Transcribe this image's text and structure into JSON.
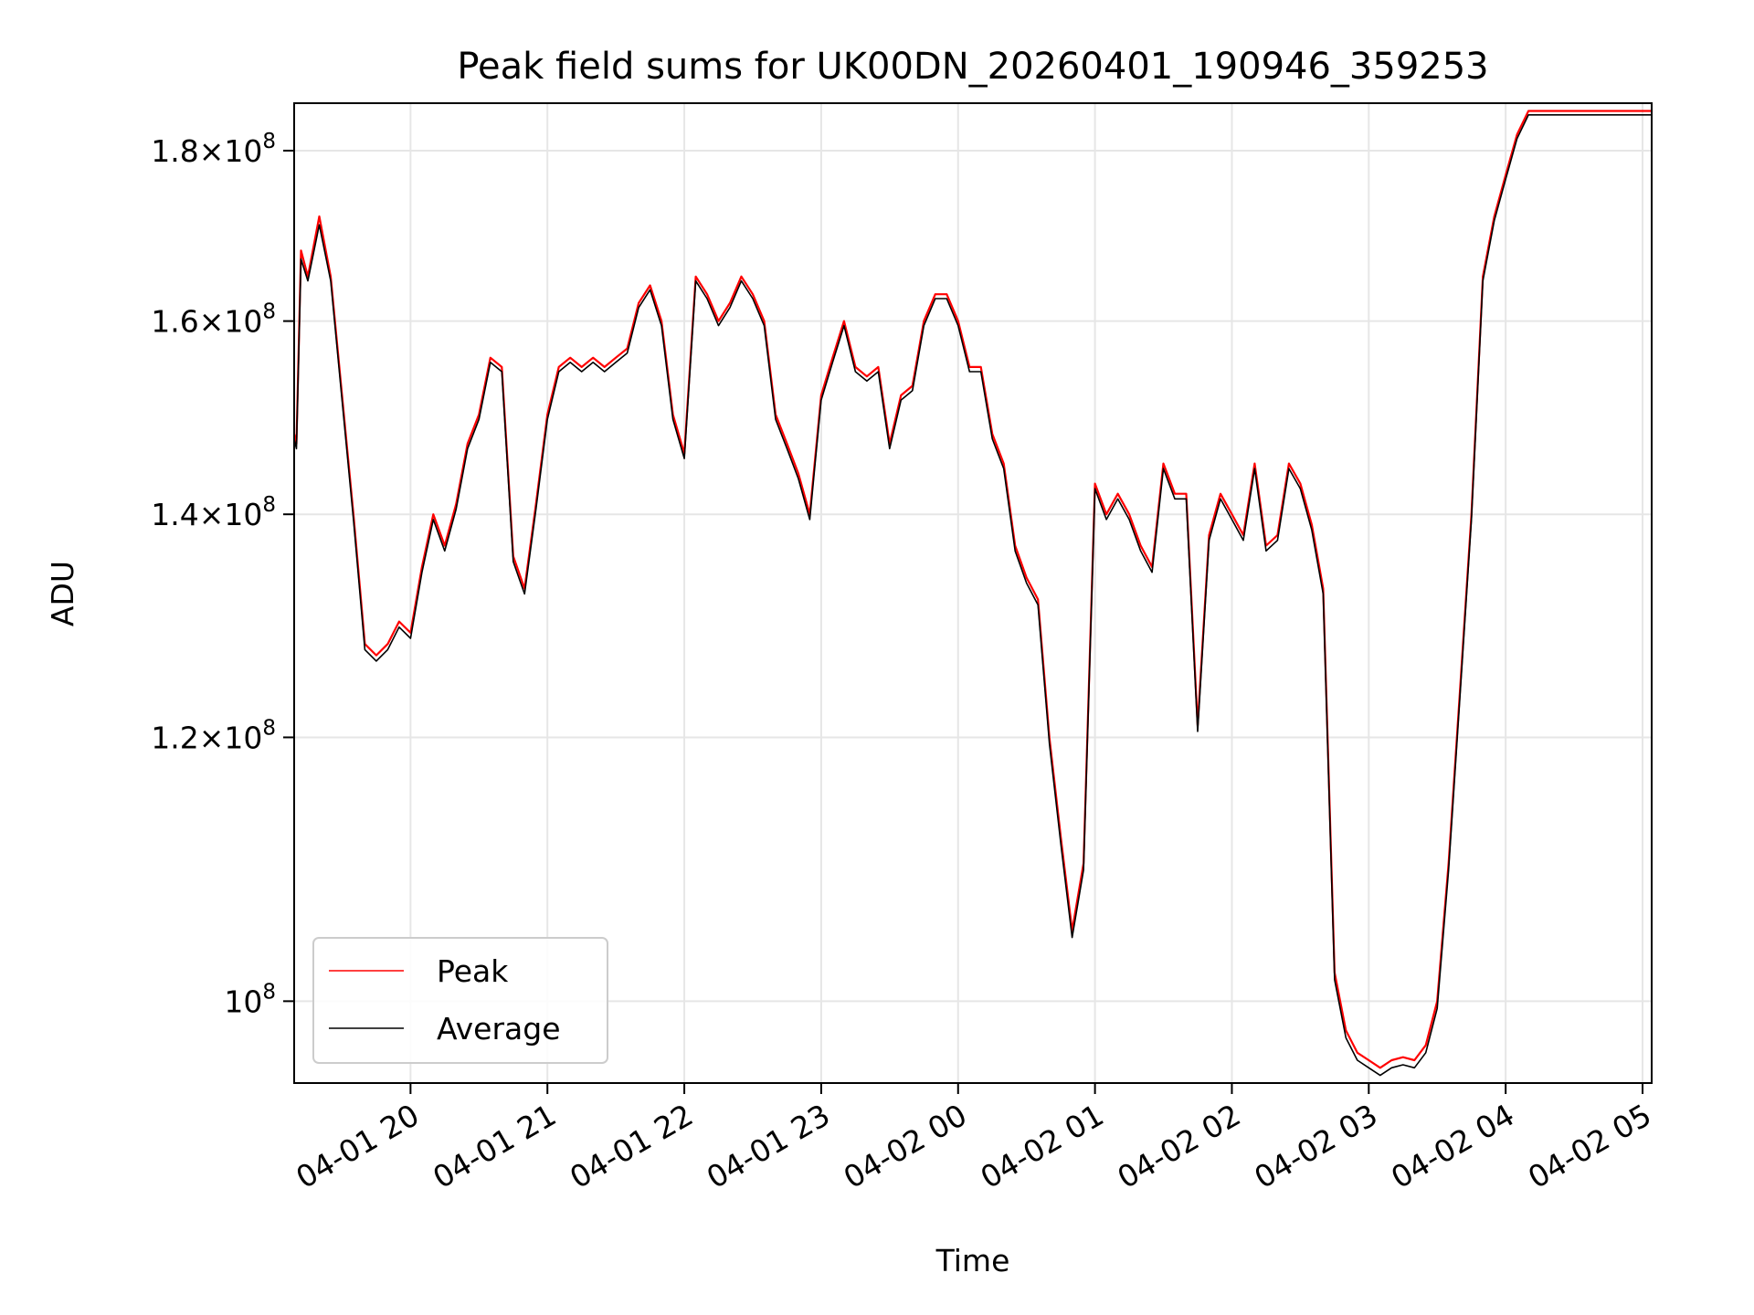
{
  "chart_data": {
    "type": "line",
    "title": "Peak field sums for UK00DN_20260401_190946_359253",
    "xlabel": "Time",
    "ylabel": "ADU",
    "yscale": "log",
    "ylim": [
      94500000,
      186000000
    ],
    "xlim": [
      "2026-04-01 19:09",
      "2026-04-02 05:04"
    ],
    "x_ticks": [
      "04-01 20",
      "04-01 21",
      "04-01 22",
      "04-01 23",
      "04-02 00",
      "04-02 01",
      "04-02 02",
      "04-02 03",
      "04-02 04",
      "04-02 05"
    ],
    "y_ticks": [
      {
        "value": 100000000,
        "mantissa": "",
        "exponent": "8"
      },
      {
        "value": 120000000,
        "mantissa": "1.2",
        "exponent": "8"
      },
      {
        "value": 140000000,
        "mantissa": "1.4",
        "exponent": "8"
      },
      {
        "value": 160000000,
        "mantissa": "1.6",
        "exponent": "8"
      },
      {
        "value": 180000000,
        "mantissa": "1.8",
        "exponent": "8"
      }
    ],
    "grid": true,
    "legend_position": "lower-left",
    "x": [
      "19:09",
      "19:10",
      "19:12",
      "19:15",
      "19:20",
      "19:25",
      "19:30",
      "19:35",
      "19:40",
      "19:45",
      "19:50",
      "19:55",
      "20:00",
      "20:05",
      "20:10",
      "20:15",
      "20:20",
      "20:25",
      "20:30",
      "20:35",
      "20:40",
      "20:45",
      "20:50",
      "20:55",
      "21:00",
      "21:05",
      "21:10",
      "21:15",
      "21:20",
      "21:25",
      "21:30",
      "21:35",
      "21:40",
      "21:45",
      "21:50",
      "21:55",
      "22:00",
      "22:05",
      "22:10",
      "22:15",
      "22:20",
      "22:25",
      "22:30",
      "22:35",
      "22:40",
      "22:45",
      "22:50",
      "22:55",
      "23:00",
      "23:05",
      "23:10",
      "23:15",
      "23:20",
      "23:25",
      "23:30",
      "23:35",
      "23:40",
      "23:45",
      "23:50",
      "23:55",
      "00:00",
      "00:05",
      "00:10",
      "00:15",
      "00:20",
      "00:25",
      "00:30",
      "00:35",
      "00:40",
      "00:45",
      "00:50",
      "00:55",
      "01:00",
      "01:05",
      "01:10",
      "01:15",
      "01:20",
      "01:25",
      "01:30",
      "01:35",
      "01:40",
      "01:45",
      "01:50",
      "01:55",
      "02:00",
      "02:05",
      "02:10",
      "02:15",
      "02:20",
      "02:25",
      "02:30",
      "02:35",
      "02:40",
      "02:45",
      "02:50",
      "02:55",
      "03:00",
      "03:05",
      "03:10",
      "03:15",
      "03:20",
      "03:25",
      "03:30",
      "03:35",
      "03:40",
      "03:45",
      "03:50",
      "03:55",
      "04:00",
      "04:05",
      "04:10",
      "04:15",
      "04:20",
      "04:25",
      "04:30",
      "04:35",
      "04:40",
      "04:45",
      "04:50",
      "04:55",
      "05:00",
      "05:04"
    ],
    "series": [
      {
        "name": "Peak",
        "color": "#ff0000",
        "values": [
          148.0,
          147.0,
          168.0,
          165.0,
          172.0,
          165.0,
          152.0,
          140.0,
          128.0,
          127.0,
          128.0,
          130.0,
          129.0,
          135.0,
          140.0,
          137.0,
          141.0,
          147.0,
          150.0,
          156.0,
          155.0,
          136.0,
          133.0,
          141.0,
          150.0,
          155.0,
          156.0,
          155.0,
          156.0,
          155.0,
          156.0,
          157.0,
          162.0,
          164.0,
          160.0,
          150.0,
          146.0,
          165.0,
          163.0,
          160.0,
          162.0,
          165.0,
          163.0,
          160.0,
          150.0,
          147.0,
          144.0,
          140.0,
          152.0,
          156.0,
          160.0,
          155.0,
          154.0,
          155.0,
          147.0,
          152.0,
          153.0,
          160.0,
          163.0,
          163.0,
          160.0,
          155.0,
          155.0,
          148.0,
          145.0,
          137.0,
          134.0,
          132.0,
          120.0,
          112.0,
          105.0,
          110.0,
          143.0,
          140.0,
          142.0,
          140.0,
          137.0,
          135.0,
          145.0,
          142.0,
          142.0,
          121.0,
          138.0,
          142.0,
          140.0,
          138.0,
          145.0,
          137.0,
          138.0,
          145.0,
          143.0,
          139.0,
          133.0,
          102.0,
          98.0,
          96.5,
          96.0,
          95.5,
          96.0,
          96.2,
          96.0,
          97.0,
          100.0,
          110.0,
          124.0,
          140.0,
          165.0,
          172.0,
          177.0,
          182.0,
          185.0,
          185.0,
          185.0,
          185.0,
          185.0,
          185.0,
          185.0,
          185.0,
          185.0,
          185.0,
          185.0,
          185.0
        ]
      },
      {
        "name": "Average",
        "color": "#000000",
        "values": [
          147.5,
          146.5,
          167.0,
          164.5,
          171.0,
          164.5,
          151.5,
          139.5,
          127.5,
          126.5,
          127.5,
          129.5,
          128.5,
          134.5,
          139.5,
          136.5,
          140.5,
          146.5,
          149.5,
          155.5,
          154.5,
          135.5,
          132.5,
          140.5,
          149.5,
          154.5,
          155.5,
          154.5,
          155.5,
          154.5,
          155.5,
          156.5,
          161.5,
          163.5,
          159.5,
          149.5,
          145.5,
          164.5,
          162.5,
          159.5,
          161.5,
          164.5,
          162.5,
          159.5,
          149.5,
          146.5,
          143.5,
          139.5,
          151.5,
          155.5,
          159.5,
          154.5,
          153.5,
          154.5,
          146.5,
          151.5,
          152.5,
          159.5,
          162.5,
          162.5,
          159.5,
          154.5,
          154.5,
          147.5,
          144.5,
          136.5,
          133.5,
          131.5,
          119.5,
          111.5,
          104.5,
          109.5,
          142.5,
          139.5,
          141.5,
          139.5,
          136.5,
          134.5,
          144.5,
          141.5,
          141.5,
          120.5,
          137.5,
          141.5,
          139.5,
          137.5,
          144.5,
          136.5,
          137.5,
          144.5,
          142.5,
          138.5,
          132.5,
          101.5,
          97.5,
          96.0,
          95.5,
          95.0,
          95.5,
          95.7,
          95.5,
          96.5,
          99.5,
          109.5,
          123.5,
          139.5,
          164.5,
          171.5,
          176.5,
          181.5,
          184.5,
          184.5,
          184.5,
          184.5,
          184.5,
          184.5,
          184.5,
          184.5,
          184.5,
          184.5,
          184.5,
          184.5
        ]
      }
    ]
  }
}
